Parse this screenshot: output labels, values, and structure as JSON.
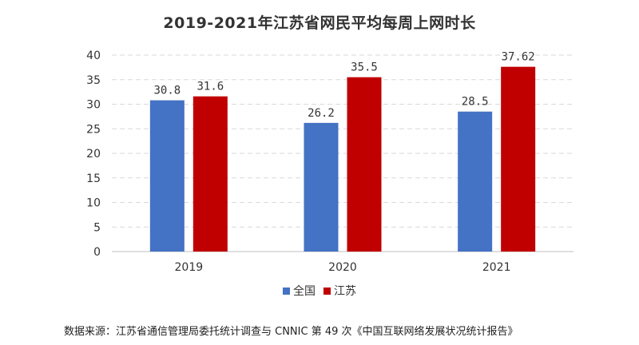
{
  "chart_data": {
    "type": "bar",
    "title": "2019-2021年江苏省网民平均每周上网时长",
    "categories": [
      "2019",
      "2020",
      "2021"
    ],
    "series": [
      {
        "name": "全国",
        "color": "#4472C4",
        "values": [
          30.8,
          26.2,
          28.5
        ],
        "labels": [
          "30.8",
          "26.2",
          "28.5"
        ]
      },
      {
        "name": "江苏",
        "color": "#C00000",
        "values": [
          31.6,
          35.5,
          37.62
        ],
        "labels": [
          "31.6",
          "35.5",
          "37.62"
        ]
      }
    ],
    "ylim": [
      0,
      40
    ],
    "yticks": [
      "0",
      "5",
      "10",
      "15",
      "20",
      "25",
      "30",
      "35",
      "40"
    ],
    "xlabel": "",
    "ylabel": "",
    "grid": true,
    "legend_position": "bottom"
  },
  "source_note": "数据来源：江苏省通信管理局委托统计调查与 CNNIC 第 49 次《中国互联网络发展状况统计报告》"
}
